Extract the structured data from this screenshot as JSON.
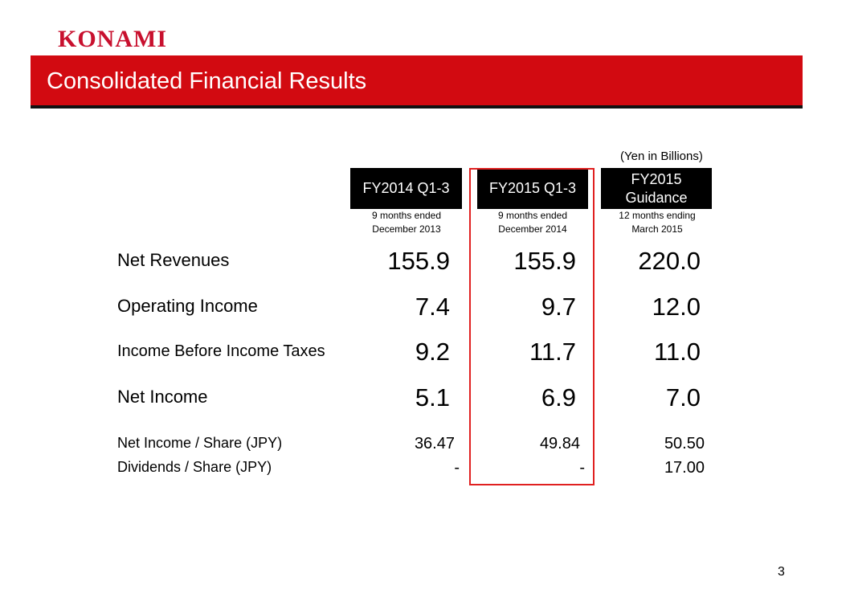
{
  "header": {
    "logo_text": "KONAMI",
    "title": "Consolidated Financial Results",
    "title_bar_color": "#d20a11",
    "logo_color": "#c8102e"
  },
  "table": {
    "unit_note": "(Yen in Billions)",
    "columns": [
      {
        "label": "FY2014 Q1-3",
        "sub_line1": "9 months ended",
        "sub_line2": "December 2013"
      },
      {
        "label": "FY2015 Q1-3",
        "sub_line1": "9 months ended",
        "sub_line2": "December 2014"
      },
      {
        "label_line1": "FY2015",
        "label_line2": "Guidance",
        "sub_line1": "12 months ending",
        "sub_line2": "March 2015"
      }
    ],
    "highlight_color": "#e02020",
    "rows": [
      {
        "label": "Net Revenues",
        "values": [
          "155.9",
          "155.9",
          "220.0"
        ]
      },
      {
        "label": "Operating Income",
        "values": [
          "7.4",
          "9.7",
          "12.0"
        ]
      },
      {
        "label": "Income Before Income Taxes",
        "values": [
          "9.2",
          "11.7",
          "11.0"
        ]
      },
      {
        "label": "Net Income",
        "values": [
          "5.1",
          "6.9",
          "7.0"
        ]
      },
      {
        "label": "Net Income / Share (JPY)",
        "values": [
          "36.47",
          "49.84",
          "50.50"
        ]
      },
      {
        "label": "Dividends / Share (JPY)",
        "values": [
          "-",
          "-",
          "17.00"
        ]
      }
    ]
  },
  "footer": {
    "page_number": "3"
  }
}
